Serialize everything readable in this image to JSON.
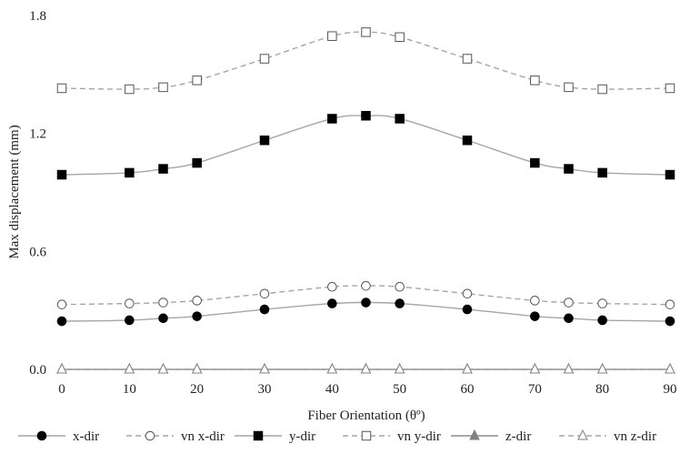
{
  "chart_data": {
    "type": "line",
    "title": "",
    "xlabel": "Fiber Orientation (θº)",
    "ylabel": "Max displacement (mm)",
    "xlim": [
      0,
      90
    ],
    "ylim": [
      0,
      1.8
    ],
    "x": [
      0,
      10,
      15,
      20,
      30,
      40,
      45,
      50,
      60,
      70,
      75,
      80,
      90
    ],
    "xticks": [
      "0",
      "10",
      "20",
      "30",
      "40",
      "50",
      "60",
      "70",
      "80",
      "90"
    ],
    "yticks": [
      "0.0",
      "0.6",
      "1.2",
      "1.8"
    ],
    "grid": false,
    "legend_position": "bottom",
    "series": [
      {
        "name": "x-dir",
        "values": [
          0.245,
          0.25,
          0.26,
          0.27,
          0.305,
          0.335,
          0.34,
          0.335,
          0.305,
          0.27,
          0.26,
          0.25,
          0.245
        ],
        "line_color": "#a6a6a6",
        "dashed": false,
        "marker": "circle",
        "marker_fill": "#000000",
        "marker_stroke": "#000000"
      },
      {
        "name": "vn x-dir",
        "values": [
          0.33,
          0.335,
          0.34,
          0.35,
          0.385,
          0.42,
          0.425,
          0.42,
          0.385,
          0.35,
          0.34,
          0.335,
          0.33
        ],
        "line_color": "#a6a6a6",
        "dashed": true,
        "marker": "circle",
        "marker_fill": "#ffffff",
        "marker_stroke": "#555555"
      },
      {
        "name": "y-dir",
        "values": [
          0.99,
          1.0,
          1.02,
          1.05,
          1.165,
          1.275,
          1.29,
          1.275,
          1.165,
          1.05,
          1.02,
          1.0,
          0.99
        ],
        "line_color": "#a6a6a6",
        "dashed": false,
        "marker": "square",
        "marker_fill": "#000000",
        "marker_stroke": "#000000"
      },
      {
        "name": "vn y-dir",
        "values": [
          1.43,
          1.425,
          1.435,
          1.47,
          1.58,
          1.695,
          1.715,
          1.69,
          1.58,
          1.47,
          1.435,
          1.425,
          1.43
        ],
        "line_color": "#a6a6a6",
        "dashed": true,
        "marker": "square",
        "marker_fill": "#ffffff",
        "marker_stroke": "#555555"
      },
      {
        "name": "z-dir",
        "values": [
          0,
          0,
          0,
          0,
          0,
          0,
          0,
          0,
          0,
          0,
          0,
          0,
          0
        ],
        "line_color": "#8c8c8c",
        "dashed": false,
        "marker": "triangle",
        "marker_fill": "#808080",
        "marker_stroke": "#808080"
      },
      {
        "name": "vn z-dir",
        "values": [
          0,
          0,
          0,
          0,
          0,
          0,
          0,
          0,
          0,
          0,
          0,
          0,
          0
        ],
        "line_color": "#a6a6a6",
        "dashed": true,
        "marker": "triangle",
        "marker_fill": "#ffffff",
        "marker_stroke": "#808080"
      }
    ]
  }
}
